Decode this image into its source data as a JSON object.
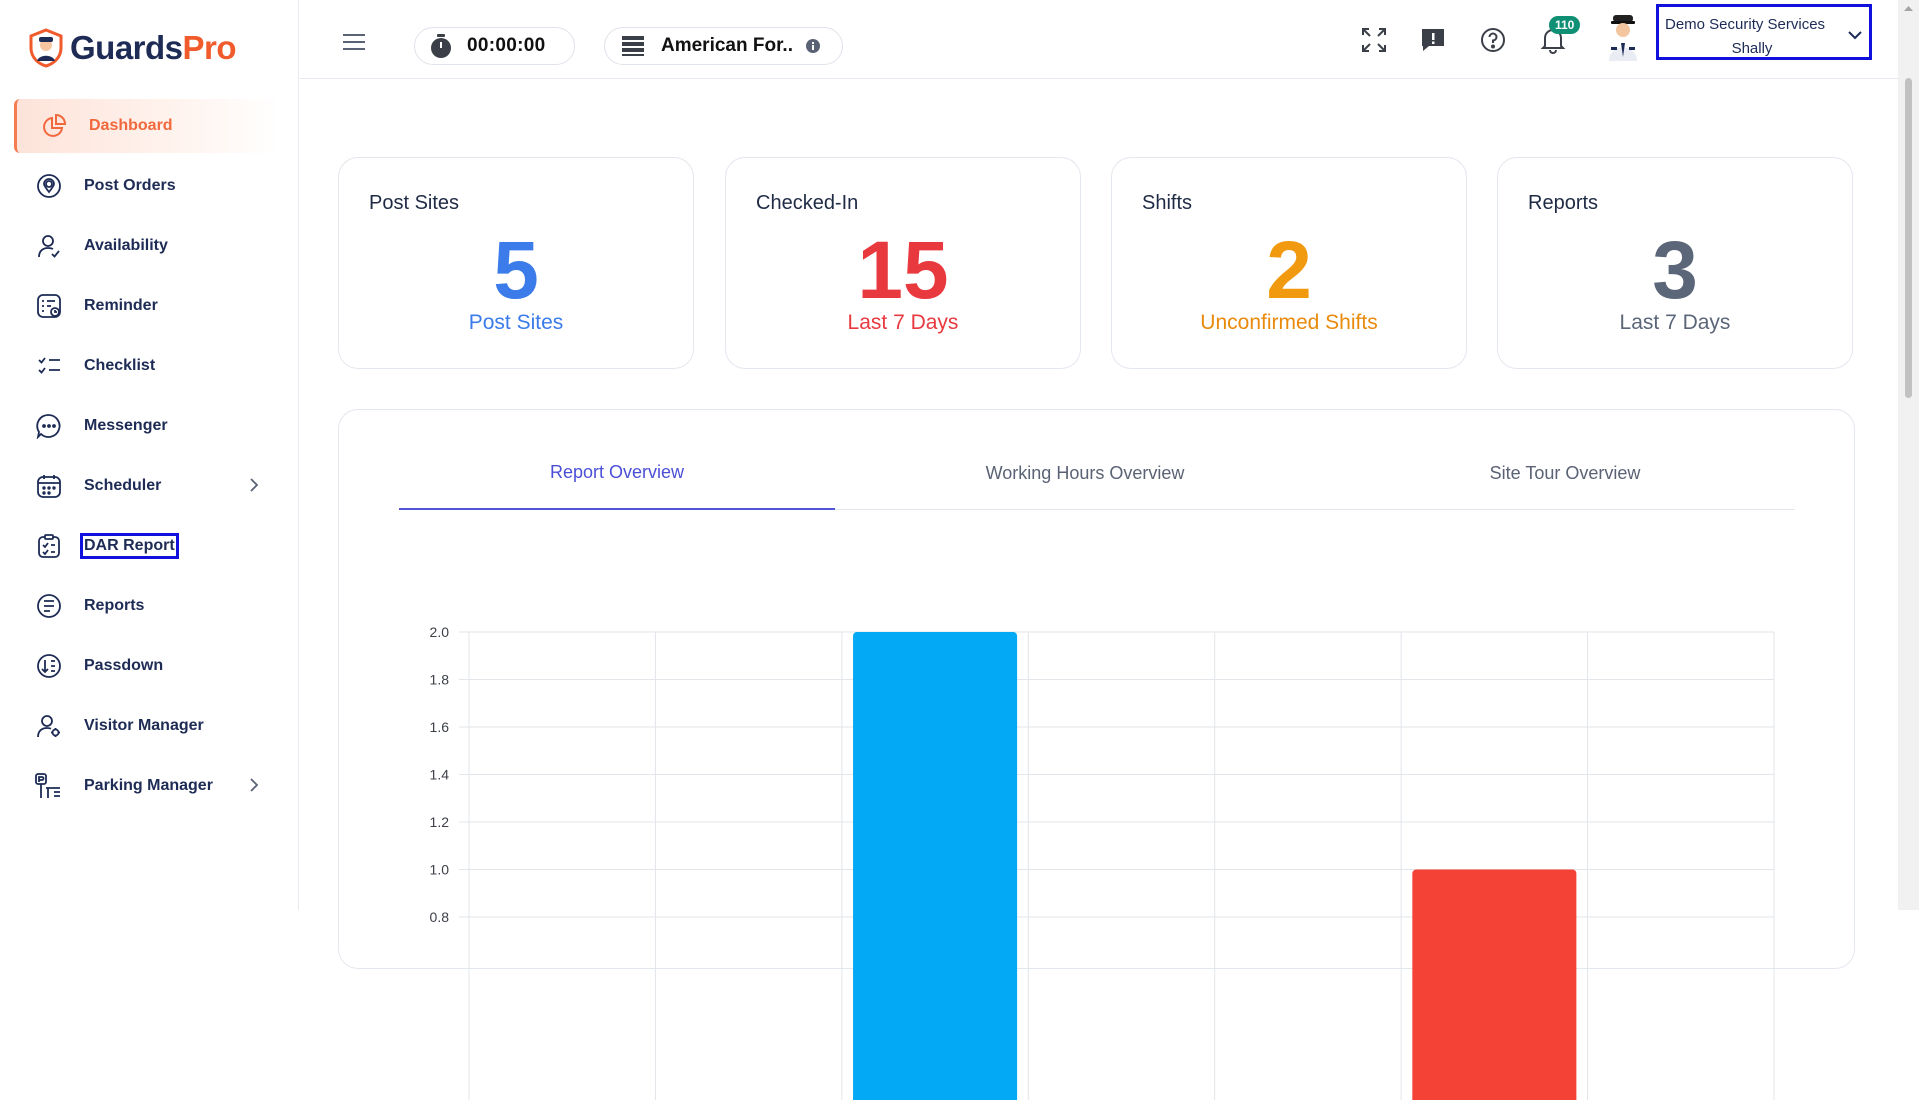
{
  "brand": {
    "name_part1": "Guards",
    "name_part2": "Pro"
  },
  "sidebar": {
    "items": [
      {
        "label": "Dashboard",
        "icon": "pie-chart-icon",
        "active": true
      },
      {
        "label": "Post Orders",
        "icon": "location-pin-icon"
      },
      {
        "label": "Availability",
        "icon": "user-check-icon"
      },
      {
        "label": "Reminder",
        "icon": "list-clock-icon"
      },
      {
        "label": "Checklist",
        "icon": "checklist-icon"
      },
      {
        "label": "Messenger",
        "icon": "chat-icon"
      },
      {
        "label": "Scheduler",
        "icon": "calendar-icon",
        "has_submenu": true
      },
      {
        "label": "DAR Report",
        "icon": "clipboard-check-icon"
      },
      {
        "label": "Reports",
        "icon": "document-lines-icon"
      },
      {
        "label": "Passdown",
        "icon": "sort-down-icon"
      },
      {
        "label": "Visitor Manager",
        "icon": "user-settings-icon"
      },
      {
        "label": "Parking Manager",
        "icon": "parking-icon",
        "has_submenu": true
      }
    ]
  },
  "topbar": {
    "timer": "00:00:00",
    "company": "American For..",
    "notifications_count": "110",
    "user": {
      "company": "Demo Security Services",
      "name": "Shally"
    }
  },
  "stats": [
    {
      "title": "Post Sites",
      "value": "5",
      "subtitle": "Post Sites",
      "color": "#3b7bea"
    },
    {
      "title": "Checked-In",
      "value": "15",
      "subtitle": "Last 7 Days",
      "color": "#e8393f"
    },
    {
      "title": "Shifts",
      "value": "2",
      "subtitle": "Unconfirmed Shifts",
      "color": "#f29a0f"
    },
    {
      "title": "Reports",
      "value": "3",
      "subtitle": "Last 7 Days",
      "color": "#5b6679"
    }
  ],
  "tabs": [
    {
      "label": "Report Overview",
      "active": true
    },
    {
      "label": "Working Hours Overview"
    },
    {
      "label": "Site Tour Overview"
    }
  ],
  "chart_data": {
    "type": "bar",
    "categories": [
      "",
      "",
      "",
      "",
      "",
      "",
      ""
    ],
    "values": [
      0,
      0,
      2.0,
      0,
      0,
      1.0,
      0
    ],
    "bar_colors": [
      "#03a9f4",
      "#03a9f4",
      "#03a9f4",
      "#03a9f4",
      "#03a9f4",
      "#f44336",
      "#03a9f4"
    ],
    "ylim": [
      0,
      2.0
    ],
    "y_ticks": [
      "2.0",
      "1.8",
      "1.6",
      "1.4",
      "1.2",
      "1.0",
      "0.8"
    ],
    "grid": true
  }
}
